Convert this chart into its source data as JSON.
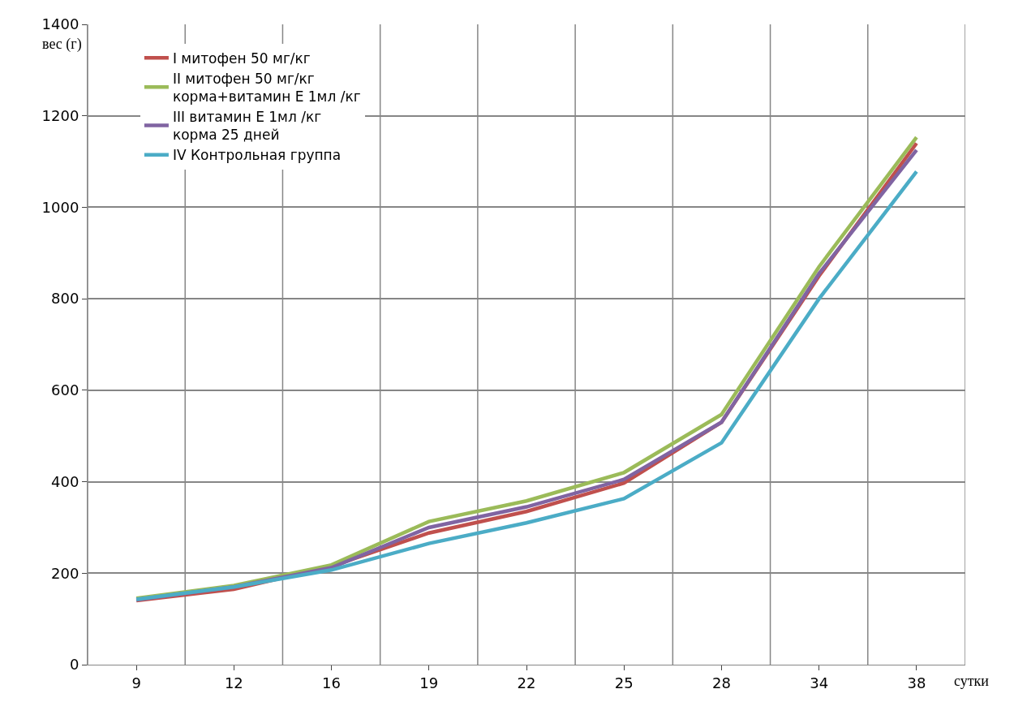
{
  "chart_data": {
    "type": "line",
    "xlabel": "сутки",
    "ylabel": "вес (г)",
    "categories": [
      "9",
      "12",
      "16",
      "19",
      "22",
      "25",
      "28",
      "34",
      "38"
    ],
    "series": [
      {
        "name": "I митофен 50 мг/кг",
        "color": "#c0504d",
        "values": [
          140,
          165,
          215,
          288,
          335,
          397,
          530,
          850,
          1140
        ]
      },
      {
        "name": "II митофен 50 мг/кг корма+витамин Е 1мл /кг",
        "color": "#9bbb59",
        "values": [
          145,
          173,
          218,
          313,
          358,
          420,
          547,
          870,
          1153
        ]
      },
      {
        "name": "III витамин Е 1мл /кг корма 25 дней",
        "color": "#8064a2",
        "values": [
          142,
          170,
          212,
          300,
          345,
          405,
          530,
          855,
          1125
        ]
      },
      {
        "name": "IV Контрольная группа",
        "color": "#4bacc6",
        "values": [
          143,
          170,
          207,
          265,
          310,
          363,
          485,
          800,
          1078
        ]
      }
    ],
    "ylim": [
      0,
      1400
    ],
    "yticks": [
      0,
      200,
      400,
      600,
      800,
      1000,
      1200,
      1400
    ],
    "grid": true,
    "legend": "top left",
    "marker": "none",
    "line_style": "solid"
  }
}
